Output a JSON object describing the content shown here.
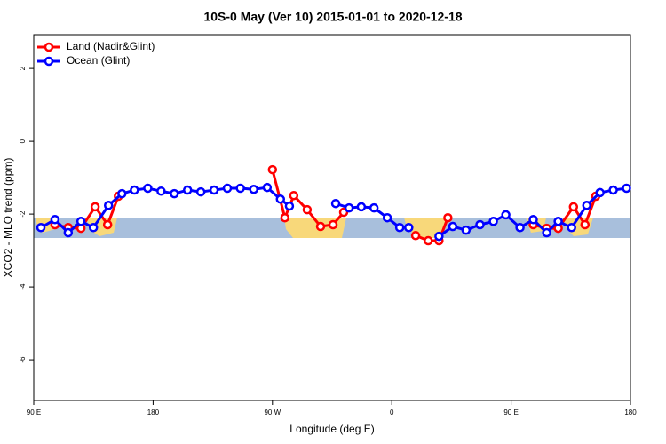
{
  "chart_data": {
    "type": "line",
    "title": "10S-0 May (Ver 10)   2015-01-01 to 2020-12-18",
    "xlabel": "Longitude (deg E)",
    "ylabel": "XCO2 - MLO trend (ppm)",
    "xlim": [
      90,
      540
    ],
    "xticks": [
      {
        "value": 90,
        "label": "90 E"
      },
      {
        "value": 180,
        "label": "180"
      },
      {
        "value": 270,
        "label": "90 W"
      },
      {
        "value": 360,
        "label": "0"
      },
      {
        "value": 450,
        "label": "90 E"
      },
      {
        "value": 540,
        "label": "180"
      }
    ],
    "ylim": [
      -7.12,
      2.93
    ],
    "yticks": [
      2,
      0,
      -2,
      -4,
      -6
    ],
    "legend": "top-left",
    "series": [
      {
        "name": "Land (Nadir&Glint)",
        "color": "#ff0000",
        "x": [
          106,
          116,
          125.6,
          136.3,
          145.7,
          153.8,
          null,
          270,
          279.4,
          286.1,
          296.2,
          306.3,
          315.7,
          323.7,
          null,
          378,
          387.5,
          395.6,
          402.3,
          null,
          466.7,
          476.8,
          485.5,
          497,
          505.7,
          513.8
        ],
        "values": [
          -2.29,
          -2.37,
          -2.39,
          -1.8,
          -2.29,
          -1.51,
          null,
          -0.78,
          -2.1,
          -1.49,
          -1.88,
          -2.34,
          -2.29,
          -1.95,
          null,
          -2.59,
          -2.73,
          -2.73,
          -2.1,
          null,
          -2.29,
          -2.39,
          -2.39,
          -1.8,
          -2.29,
          -1.51
        ]
      },
      {
        "name": "Ocean (Glint)",
        "color": "#0000ff",
        "x": [
          95.4,
          106,
          116,
          125.6,
          135,
          146.4,
          156.5,
          165.9,
          176,
          186,
          196,
          206,
          216,
          226,
          236,
          245.8,
          255.9,
          266,
          276,
          282.8,
          null,
          317.7,
          327.8,
          337,
          346.6,
          356.6,
          366,
          372.8,
          null,
          395.6,
          406,
          416,
          426.5,
          436.6,
          446,
          456.7,
          466.7,
          476.8,
          485.5,
          495.6,
          507,
          517,
          527,
          537
        ],
        "values": [
          -2.37,
          -2.15,
          -2.51,
          -2.2,
          -2.37,
          -1.76,
          -1.44,
          -1.34,
          -1.29,
          -1.37,
          -1.44,
          -1.34,
          -1.39,
          -1.34,
          -1.29,
          -1.29,
          -1.32,
          -1.27,
          -1.59,
          -1.78,
          null,
          -1.71,
          -1.83,
          -1.8,
          -1.83,
          -2.1,
          -2.37,
          -2.37,
          null,
          -2.61,
          -2.34,
          -2.44,
          -2.29,
          -2.2,
          -2.02,
          -2.37,
          -2.15,
          -2.51,
          -2.2,
          -2.37,
          -1.76,
          -1.41,
          -1.34,
          -1.29
        ]
      }
    ]
  }
}
